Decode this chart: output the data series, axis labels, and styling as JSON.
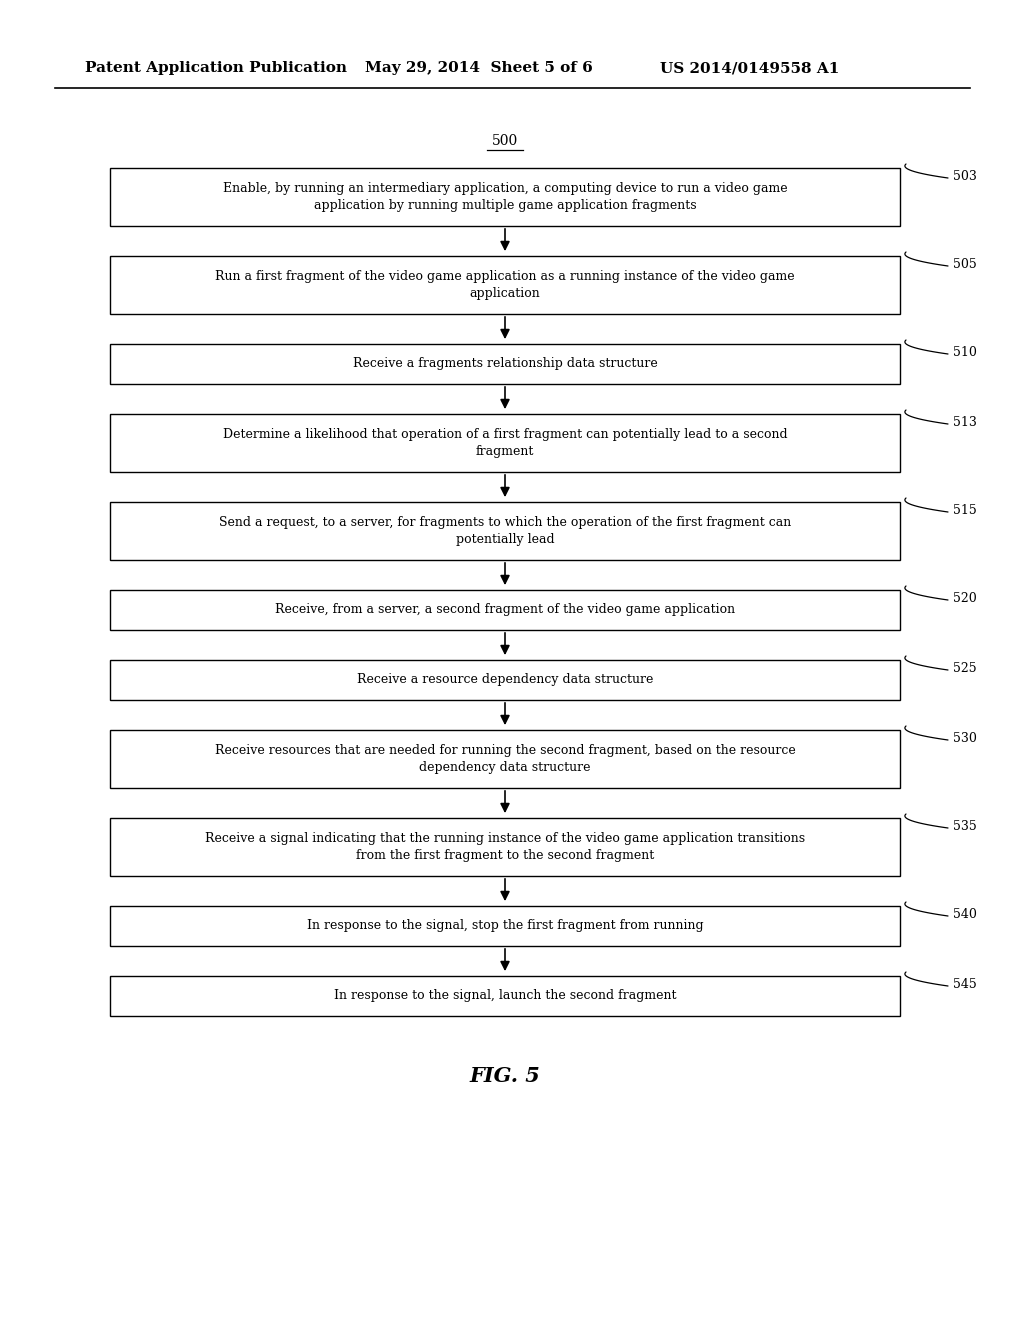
{
  "header_left": "Patent Application Publication",
  "header_mid": "May 29, 2014  Sheet 5 of 6",
  "header_right": "US 2014/0149558 A1",
  "fig_label": "FIG. 5",
  "flow_label": "500",
  "boxes": [
    {
      "id": "503",
      "text": "Enable, by running an intermediary application, a computing device to run a video game\napplication by running multiple game application fragments",
      "lines": 2
    },
    {
      "id": "505",
      "text": "Run a first fragment of the video game application as a running instance of the video game\napplication",
      "lines": 2
    },
    {
      "id": "510",
      "text": "Receive a fragments relationship data structure",
      "lines": 1
    },
    {
      "id": "513",
      "text": "Determine a likelihood that operation of a first fragment can potentially lead to a second\nfragment",
      "lines": 2
    },
    {
      "id": "515",
      "text": "Send a request, to a server, for fragments to which the operation of the first fragment can\npotentially lead",
      "lines": 2
    },
    {
      "id": "520",
      "text": "Receive, from a server, a second fragment of the video game application",
      "lines": 1
    },
    {
      "id": "525",
      "text": "Receive a resource dependency data structure",
      "lines": 1
    },
    {
      "id": "530",
      "text": "Receive resources that are needed for running the second fragment, based on the resource\ndependency data structure",
      "lines": 2
    },
    {
      "id": "535",
      "text": "Receive a signal indicating that the running instance of the video game application transitions\nfrom the first fragment to the second fragment",
      "lines": 2
    },
    {
      "id": "540",
      "text": "In response to the signal, stop the first fragment from running",
      "lines": 1
    },
    {
      "id": "545",
      "text": "In response to the signal, launch the second fragment",
      "lines": 1
    }
  ],
  "box_color": "#ffffff",
  "box_edge_color": "#000000",
  "arrow_color": "#000000",
  "text_color": "#000000",
  "background_color": "#ffffff",
  "font_size": 9,
  "header_font_size": 11,
  "fig_label_font_size": 15
}
